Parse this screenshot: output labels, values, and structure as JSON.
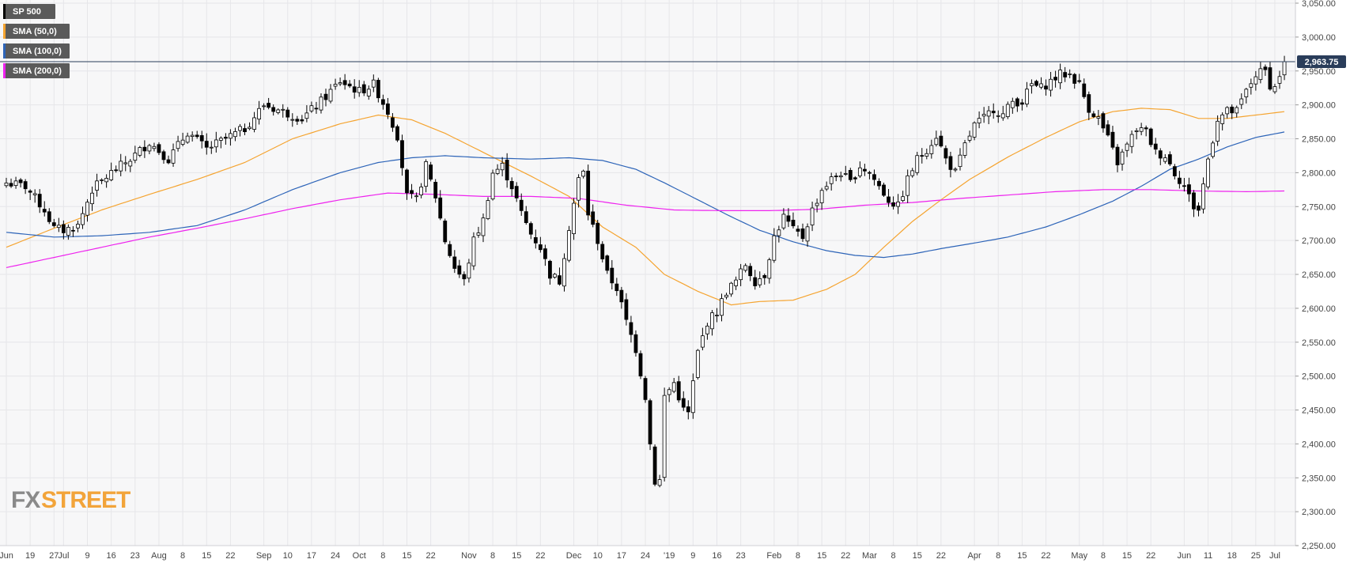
{
  "colors": {
    "background": "#f7f7f8",
    "grid": "#e6e6e9",
    "candle_up_fill": "#ffffff",
    "candle_down_fill": "#000000",
    "candle_stroke": "#000000",
    "sma50": "#f5a430",
    "sma100": "#2d64b8",
    "sma200": "#ee22ee",
    "price_line": "#2a3d5a",
    "legend_bg": "#5a5a5a"
  },
  "legend": [
    {
      "label": "SP 500",
      "color": "#000000"
    },
    {
      "label": "SMA (50,0)",
      "color": "#f5a430"
    },
    {
      "label": "SMA (100,0)",
      "color": "#2d64b8"
    },
    {
      "label": "SMA (200,0)",
      "color": "#ee22ee"
    }
  ],
  "last_price_label": "2,963.75",
  "logo": {
    "part1": "FX",
    "part2": "STREET"
  },
  "chart_data": {
    "type": "candlestick",
    "title": "",
    "xlabel": "",
    "ylabel": "",
    "ylim": [
      2250,
      3050
    ],
    "y_ticks": [
      {
        "value": 2250,
        "label": "2,250.00"
      },
      {
        "value": 2300,
        "label": "2,300.00"
      },
      {
        "value": 2350,
        "label": "2,350.00"
      },
      {
        "value": 2400,
        "label": "2,400.00"
      },
      {
        "value": 2450,
        "label": "2,450.00"
      },
      {
        "value": 2500,
        "label": "2,500.00"
      },
      {
        "value": 2550,
        "label": "2,550.00"
      },
      {
        "value": 2600,
        "label": "2,600.00"
      },
      {
        "value": 2650,
        "label": "2,650.00"
      },
      {
        "value": 2700,
        "label": "2,700.00"
      },
      {
        "value": 2750,
        "label": "2,750.00"
      },
      {
        "value": 2800,
        "label": "2,800.00"
      },
      {
        "value": 2850,
        "label": "2,850.00"
      },
      {
        "value": 2900,
        "label": "2,900.00"
      },
      {
        "value": 2950,
        "label": "2,950.00"
      },
      {
        "value": 3000,
        "label": "3,000.00"
      },
      {
        "value": 3050,
        "label": "3,050.00"
      }
    ],
    "x_ticks": [
      {
        "i": 0,
        "label": "Jun"
      },
      {
        "i": 5,
        "label": "19"
      },
      {
        "i": 10,
        "label": "27"
      },
      {
        "i": 12,
        "label": "Jul"
      },
      {
        "i": 17,
        "label": "9"
      },
      {
        "i": 22,
        "label": "16"
      },
      {
        "i": 27,
        "label": "23"
      },
      {
        "i": 32,
        "label": "Aug"
      },
      {
        "i": 37,
        "label": "8"
      },
      {
        "i": 42,
        "label": "15"
      },
      {
        "i": 47,
        "label": "22"
      },
      {
        "i": 54,
        "label": "Sep"
      },
      {
        "i": 59,
        "label": "10"
      },
      {
        "i": 64,
        "label": "17"
      },
      {
        "i": 69,
        "label": "24"
      },
      {
        "i": 74,
        "label": "Oct"
      },
      {
        "i": 79,
        "label": "8"
      },
      {
        "i": 84,
        "label": "15"
      },
      {
        "i": 89,
        "label": "22"
      },
      {
        "i": 97,
        "label": "Nov"
      },
      {
        "i": 102,
        "label": "8"
      },
      {
        "i": 107,
        "label": "15"
      },
      {
        "i": 112,
        "label": "22"
      },
      {
        "i": 119,
        "label": "Dec"
      },
      {
        "i": 124,
        "label": "10"
      },
      {
        "i": 129,
        "label": "17"
      },
      {
        "i": 134,
        "label": "24"
      },
      {
        "i": 139,
        "label": "'19"
      },
      {
        "i": 144,
        "label": "9"
      },
      {
        "i": 149,
        "label": "16"
      },
      {
        "i": 154,
        "label": "23"
      },
      {
        "i": 161,
        "label": "Feb"
      },
      {
        "i": 166,
        "label": "8"
      },
      {
        "i": 171,
        "label": "15"
      },
      {
        "i": 176,
        "label": "22"
      },
      {
        "i": 181,
        "label": "Mar"
      },
      {
        "i": 186,
        "label": "8"
      },
      {
        "i": 191,
        "label": "15"
      },
      {
        "i": 196,
        "label": "22"
      },
      {
        "i": 203,
        "label": "Apr"
      },
      {
        "i": 208,
        "label": "8"
      },
      {
        "i": 213,
        "label": "15"
      },
      {
        "i": 218,
        "label": "22"
      },
      {
        "i": 225,
        "label": "May"
      },
      {
        "i": 230,
        "label": "8"
      },
      {
        "i": 235,
        "label": "15"
      },
      {
        "i": 240,
        "label": "22"
      },
      {
        "i": 247,
        "label": "Jun"
      },
      {
        "i": 252,
        "label": "11"
      },
      {
        "i": 257,
        "label": "18"
      },
      {
        "i": 262,
        "label": "25"
      },
      {
        "i": 266,
        "label": "Jul"
      }
    ],
    "anchors_close": [
      [
        0,
        2785
      ],
      [
        4,
        2780
      ],
      [
        8,
        2745
      ],
      [
        10,
        2718
      ],
      [
        12,
        2715
      ],
      [
        15,
        2722
      ],
      [
        18,
        2775
      ],
      [
        22,
        2800
      ],
      [
        26,
        2820
      ],
      [
        30,
        2845
      ],
      [
        34,
        2820
      ],
      [
        38,
        2860
      ],
      [
        42,
        2835
      ],
      [
        46,
        2850
      ],
      [
        50,
        2865
      ],
      [
        54,
        2900
      ],
      [
        58,
        2890
      ],
      [
        62,
        2880
      ],
      [
        66,
        2905
      ],
      [
        70,
        2935
      ],
      [
        74,
        2920
      ],
      [
        77,
        2930
      ],
      [
        80,
        2890
      ],
      [
        82,
        2855
      ],
      [
        84,
        2765
      ],
      [
        86,
        2760
      ],
      [
        88,
        2810
      ],
      [
        90,
        2765
      ],
      [
        92,
        2700
      ],
      [
        94,
        2660
      ],
      [
        96,
        2640
      ],
      [
        98,
        2700
      ],
      [
        100,
        2730
      ],
      [
        102,
        2800
      ],
      [
        104,
        2810
      ],
      [
        106,
        2780
      ],
      [
        108,
        2740
      ],
      [
        110,
        2710
      ],
      [
        112,
        2690
      ],
      [
        114,
        2650
      ],
      [
        116,
        2640
      ],
      [
        118,
        2720
      ],
      [
        120,
        2790
      ],
      [
        121,
        2800
      ],
      [
        122,
        2740
      ],
      [
        124,
        2700
      ],
      [
        126,
        2650
      ],
      [
        128,
        2630
      ],
      [
        130,
        2580
      ],
      [
        132,
        2540
      ],
      [
        134,
        2470
      ],
      [
        135,
        2400
      ],
      [
        136,
        2345
      ],
      [
        137,
        2346
      ],
      [
        138,
        2470
      ],
      [
        140,
        2490
      ],
      [
        142,
        2450
      ],
      [
        143,
        2445
      ],
      [
        145,
        2535
      ],
      [
        147,
        2580
      ],
      [
        149,
        2595
      ],
      [
        151,
        2625
      ],
      [
        153,
        2640
      ],
      [
        155,
        2665
      ],
      [
        157,
        2640
      ],
      [
        159,
        2650
      ],
      [
        161,
        2705
      ],
      [
        163,
        2735
      ],
      [
        165,
        2715
      ],
      [
        167,
        2705
      ],
      [
        169,
        2745
      ],
      [
        171,
        2775
      ],
      [
        173,
        2790
      ],
      [
        175,
        2800
      ],
      [
        177,
        2785
      ],
      [
        179,
        2810
      ],
      [
        181,
        2800
      ],
      [
        183,
        2780
      ],
      [
        185,
        2760
      ],
      [
        187,
        2750
      ],
      [
        189,
        2790
      ],
      [
        191,
        2820
      ],
      [
        193,
        2835
      ],
      [
        195,
        2855
      ],
      [
        197,
        2820
      ],
      [
        199,
        2800
      ],
      [
        201,
        2840
      ],
      [
        203,
        2870
      ],
      [
        205,
        2880
      ],
      [
        207,
        2895
      ],
      [
        209,
        2885
      ],
      [
        211,
        2905
      ],
      [
        213,
        2905
      ],
      [
        215,
        2930
      ],
      [
        217,
        2925
      ],
      [
        219,
        2935
      ],
      [
        221,
        2945
      ],
      [
        223,
        2945
      ],
      [
        225,
        2930
      ],
      [
        227,
        2895
      ],
      [
        229,
        2880
      ],
      [
        231,
        2850
      ],
      [
        233,
        2815
      ],
      [
        235,
        2840
      ],
      [
        237,
        2865
      ],
      [
        239,
        2860
      ],
      [
        241,
        2830
      ],
      [
        243,
        2825
      ],
      [
        245,
        2800
      ],
      [
        247,
        2780
      ],
      [
        249,
        2750
      ],
      [
        250,
        2745
      ],
      [
        252,
        2820
      ],
      [
        254,
        2880
      ],
      [
        256,
        2890
      ],
      [
        258,
        2890
      ],
      [
        260,
        2920
      ],
      [
        262,
        2945
      ],
      [
        264,
        2950
      ],
      [
        265,
        2930
      ],
      [
        266,
        2925
      ],
      [
        267,
        2945
      ],
      [
        268,
        2964
      ]
    ],
    "series": [
      {
        "name": "SP 500",
        "values": "candles"
      },
      {
        "name": "SMA (50,0)",
        "anchors": [
          [
            0,
            2690
          ],
          [
            10,
            2718
          ],
          [
            20,
            2745
          ],
          [
            30,
            2768
          ],
          [
            40,
            2790
          ],
          [
            50,
            2815
          ],
          [
            60,
            2850
          ],
          [
            70,
            2872
          ],
          [
            78,
            2885
          ],
          [
            85,
            2878
          ],
          [
            92,
            2858
          ],
          [
            100,
            2830
          ],
          [
            110,
            2795
          ],
          [
            118,
            2765
          ],
          [
            125,
            2720
          ],
          [
            132,
            2690
          ],
          [
            138,
            2650
          ],
          [
            145,
            2625
          ],
          [
            152,
            2605
          ],
          [
            158,
            2610
          ],
          [
            165,
            2612
          ],
          [
            172,
            2628
          ],
          [
            178,
            2650
          ],
          [
            184,
            2690
          ],
          [
            190,
            2728
          ],
          [
            196,
            2760
          ],
          [
            202,
            2790
          ],
          [
            210,
            2823
          ],
          [
            218,
            2852
          ],
          [
            225,
            2875
          ],
          [
            232,
            2890
          ],
          [
            238,
            2895
          ],
          [
            244,
            2893
          ],
          [
            250,
            2880
          ],
          [
            256,
            2880
          ],
          [
            262,
            2885
          ],
          [
            268,
            2890
          ]
        ]
      },
      {
        "name": "SMA (100,0)",
        "anchors": [
          [
            0,
            2712
          ],
          [
            10,
            2705
          ],
          [
            20,
            2707
          ],
          [
            30,
            2712
          ],
          [
            40,
            2722
          ],
          [
            50,
            2745
          ],
          [
            60,
            2775
          ],
          [
            70,
            2800
          ],
          [
            78,
            2815
          ],
          [
            85,
            2822
          ],
          [
            92,
            2825
          ],
          [
            100,
            2822
          ],
          [
            110,
            2820
          ],
          [
            118,
            2822
          ],
          [
            125,
            2818
          ],
          [
            132,
            2805
          ],
          [
            138,
            2785
          ],
          [
            145,
            2760
          ],
          [
            152,
            2735
          ],
          [
            158,
            2715
          ],
          [
            165,
            2698
          ],
          [
            172,
            2685
          ],
          [
            178,
            2678
          ],
          [
            184,
            2675
          ],
          [
            190,
            2680
          ],
          [
            196,
            2688
          ],
          [
            202,
            2695
          ],
          [
            210,
            2705
          ],
          [
            218,
            2720
          ],
          [
            225,
            2738
          ],
          [
            232,
            2758
          ],
          [
            238,
            2780
          ],
          [
            244,
            2805
          ],
          [
            250,
            2820
          ],
          [
            256,
            2838
          ],
          [
            262,
            2852
          ],
          [
            268,
            2860
          ]
        ]
      },
      {
        "name": "SMA (200,0)",
        "anchors": [
          [
            0,
            2660
          ],
          [
            10,
            2675
          ],
          [
            20,
            2690
          ],
          [
            30,
            2705
          ],
          [
            40,
            2718
          ],
          [
            50,
            2732
          ],
          [
            60,
            2747
          ],
          [
            70,
            2760
          ],
          [
            80,
            2770
          ],
          [
            90,
            2768
          ],
          [
            100,
            2765
          ],
          [
            110,
            2765
          ],
          [
            120,
            2762
          ],
          [
            130,
            2752
          ],
          [
            140,
            2745
          ],
          [
            150,
            2744
          ],
          [
            160,
            2744
          ],
          [
            170,
            2746
          ],
          [
            180,
            2752
          ],
          [
            190,
            2756
          ],
          [
            200,
            2762
          ],
          [
            210,
            2767
          ],
          [
            220,
            2772
          ],
          [
            230,
            2775
          ],
          [
            240,
            2775
          ],
          [
            250,
            2773
          ],
          [
            260,
            2772
          ],
          [
            268,
            2773
          ]
        ]
      }
    ],
    "last_value": 2963.75,
    "grid": true,
    "legend_position": "top-left",
    "n_bars": 269
  }
}
